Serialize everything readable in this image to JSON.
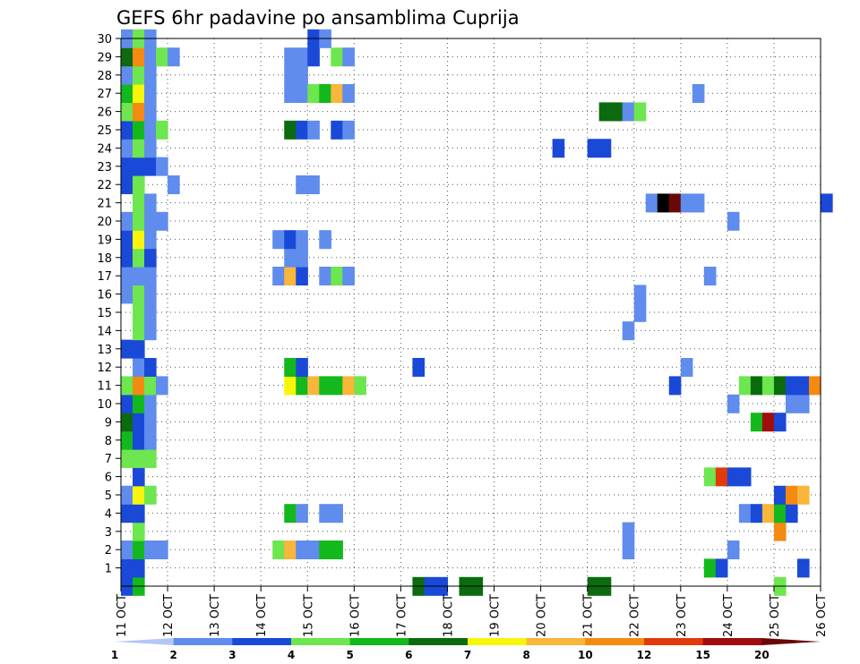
{
  "chart_data": {
    "type": "heatmap",
    "title": "GEFS 6hr padavine po ansamblima Cuprija",
    "xlabel": "",
    "ylabel": "",
    "x_tick_labels": [
      "11 OCT",
      "12 OCT",
      "13 OCT",
      "14 OCT",
      "15 OCT",
      "16 OCT",
      "17 OCT",
      "18 OCT",
      "19 OCT",
      "20 OCT",
      "21 OCT",
      "22 OCT",
      "23 OCT",
      "24 OCT",
      "25 OCT",
      "26 OCT"
    ],
    "y_tick_labels": [
      "1",
      "2",
      "3",
      "4",
      "5",
      "6",
      "7",
      "8",
      "9",
      "10",
      "11",
      "12",
      "13",
      "14",
      "15",
      "16",
      "17",
      "18",
      "19",
      "20",
      "21",
      "22",
      "23",
      "24",
      "25",
      "26",
      "27",
      "28",
      "29",
      "30"
    ],
    "y_range": [
      0,
      30
    ],
    "x_range_steps": [
      0,
      60
    ],
    "steps_per_day": 4,
    "grid": true,
    "colorbar": {
      "labels": [
        "1",
        "2",
        "3",
        "4",
        "5",
        "6",
        "7",
        "8",
        "10",
        "12",
        "15",
        "20"
      ],
      "colors": [
        "#b3c6f5",
        "#5f8ced",
        "#1a49d8",
        "#6de64f",
        "#12b81c",
        "#0b6b0e",
        "#f7f50a",
        "#f8b63a",
        "#f58a10",
        "#e23a0a",
        "#a10c0c",
        "#6a0808"
      ]
    },
    "cells": [
      [
        0,
        0,
        2
      ],
      [
        1,
        0,
        4
      ],
      [
        25,
        0,
        5
      ],
      [
        26,
        0,
        2
      ],
      [
        27,
        0,
        2
      ],
      [
        29,
        0,
        5
      ],
      [
        30,
        0,
        5
      ],
      [
        40,
        0,
        5
      ],
      [
        41,
        0,
        5
      ],
      [
        56,
        0,
        3
      ],
      [
        0,
        1,
        2
      ],
      [
        1,
        1,
        2
      ],
      [
        50,
        1,
        4
      ],
      [
        51,
        1,
        2
      ],
      [
        58,
        1,
        2
      ],
      [
        0,
        2,
        1
      ],
      [
        1,
        2,
        4
      ],
      [
        2,
        2,
        1
      ],
      [
        3,
        2,
        1
      ],
      [
        13,
        2,
        3
      ],
      [
        14,
        2,
        7
      ],
      [
        15,
        2,
        1
      ],
      [
        16,
        2,
        1
      ],
      [
        17,
        2,
        4
      ],
      [
        18,
        2,
        4
      ],
      [
        43,
        2,
        1
      ],
      [
        52,
        2,
        1
      ],
      [
        1,
        3,
        3
      ],
      [
        43,
        3,
        1
      ],
      [
        56,
        3,
        8
      ],
      [
        0,
        4,
        2
      ],
      [
        1,
        4,
        2
      ],
      [
        14,
        4,
        4
      ],
      [
        15,
        4,
        1
      ],
      [
        17,
        4,
        1
      ],
      [
        18,
        4,
        1
      ],
      [
        53,
        4,
        1
      ],
      [
        54,
        4,
        2
      ],
      [
        55,
        4,
        7
      ],
      [
        56,
        4,
        4
      ],
      [
        57,
        4,
        2
      ],
      [
        0,
        5,
        1
      ],
      [
        1,
        5,
        6
      ],
      [
        2,
        5,
        3
      ],
      [
        56,
        5,
        2
      ],
      [
        57,
        5,
        8
      ],
      [
        58,
        5,
        7
      ],
      [
        1,
        6,
        2
      ],
      [
        50,
        6,
        3
      ],
      [
        51,
        6,
        9
      ],
      [
        52,
        6,
        2
      ],
      [
        53,
        6,
        2
      ],
      [
        0,
        7,
        3
      ],
      [
        1,
        7,
        3
      ],
      [
        2,
        7,
        3
      ],
      [
        0,
        8,
        4
      ],
      [
        1,
        8,
        2
      ],
      [
        2,
        8,
        1
      ],
      [
        0,
        9,
        5
      ],
      [
        1,
        9,
        2
      ],
      [
        2,
        9,
        1
      ],
      [
        54,
        9,
        4
      ],
      [
        55,
        9,
        10
      ],
      [
        56,
        9,
        2
      ],
      [
        0,
        10,
        2
      ],
      [
        1,
        10,
        4
      ],
      [
        2,
        10,
        1
      ],
      [
        52,
        10,
        1
      ],
      [
        57,
        10,
        1
      ],
      [
        58,
        10,
        1
      ],
      [
        0,
        11,
        3
      ],
      [
        1,
        11,
        8
      ],
      [
        2,
        11,
        3
      ],
      [
        3,
        11,
        1
      ],
      [
        14,
        11,
        6
      ],
      [
        15,
        11,
        4
      ],
      [
        16,
        11,
        7
      ],
      [
        17,
        11,
        4
      ],
      [
        18,
        11,
        4
      ],
      [
        19,
        11,
        7
      ],
      [
        20,
        11,
        3
      ],
      [
        47,
        11,
        2
      ],
      [
        53,
        11,
        3
      ],
      [
        54,
        11,
        5
      ],
      [
        55,
        11,
        3
      ],
      [
        56,
        11,
        5
      ],
      [
        57,
        11,
        2
      ],
      [
        58,
        11,
        2
      ],
      [
        59,
        11,
        8
      ],
      [
        1,
        12,
        1
      ],
      [
        2,
        12,
        2
      ],
      [
        14,
        12,
        4
      ],
      [
        15,
        12,
        2
      ],
      [
        25,
        12,
        2
      ],
      [
        48,
        12,
        1
      ],
      [
        0,
        13,
        2
      ],
      [
        1,
        13,
        2
      ],
      [
        1,
        14,
        3
      ],
      [
        2,
        14,
        1
      ],
      [
        43,
        14,
        1
      ],
      [
        1,
        15,
        3
      ],
      [
        2,
        15,
        1
      ],
      [
        44,
        15,
        1
      ],
      [
        0,
        16,
        1
      ],
      [
        1,
        16,
        3
      ],
      [
        2,
        16,
        1
      ],
      [
        44,
        16,
        1
      ],
      [
        0,
        17,
        1
      ],
      [
        1,
        17,
        1
      ],
      [
        2,
        17,
        1
      ],
      [
        13,
        17,
        1
      ],
      [
        14,
        17,
        7
      ],
      [
        15,
        17,
        2
      ],
      [
        17,
        17,
        1
      ],
      [
        18,
        17,
        3
      ],
      [
        19,
        17,
        1
      ],
      [
        50,
        17,
        1
      ],
      [
        0,
        18,
        2
      ],
      [
        1,
        18,
        3
      ],
      [
        2,
        18,
        2
      ],
      [
        14,
        18,
        1
      ],
      [
        15,
        18,
        1
      ],
      [
        0,
        19,
        2
      ],
      [
        1,
        19,
        6
      ],
      [
        2,
        19,
        1
      ],
      [
        13,
        19,
        1
      ],
      [
        14,
        19,
        2
      ],
      [
        15,
        19,
        1
      ],
      [
        17,
        19,
        1
      ],
      [
        0,
        20,
        1
      ],
      [
        1,
        20,
        3
      ],
      [
        2,
        20,
        1
      ],
      [
        3,
        20,
        1
      ],
      [
        52,
        20,
        1
      ],
      [
        1,
        21,
        3
      ],
      [
        2,
        21,
        1
      ],
      [
        45,
        21,
        1
      ],
      [
        46,
        21,
        12
      ],
      [
        47,
        21,
        11
      ],
      [
        48,
        21,
        1
      ],
      [
        49,
        21,
        1
      ],
      [
        60,
        21,
        2
      ],
      [
        0,
        22,
        2
      ],
      [
        1,
        22,
        3
      ],
      [
        4,
        22,
        1
      ],
      [
        15,
        22,
        1
      ],
      [
        16,
        22,
        1
      ],
      [
        0,
        23,
        2
      ],
      [
        1,
        23,
        2
      ],
      [
        2,
        23,
        2
      ],
      [
        3,
        23,
        1
      ],
      [
        0,
        24,
        1
      ],
      [
        1,
        24,
        3
      ],
      [
        2,
        24,
        1
      ],
      [
        37,
        24,
        2
      ],
      [
        40,
        24,
        2
      ],
      [
        41,
        24,
        2
      ],
      [
        0,
        25,
        2
      ],
      [
        1,
        25,
        4
      ],
      [
        2,
        25,
        1
      ],
      [
        3,
        25,
        3
      ],
      [
        14,
        25,
        5
      ],
      [
        15,
        25,
        2
      ],
      [
        16,
        25,
        1
      ],
      [
        18,
        25,
        2
      ],
      [
        19,
        25,
        1
      ],
      [
        0,
        26,
        3
      ],
      [
        1,
        26,
        8
      ],
      [
        2,
        26,
        1
      ],
      [
        41,
        26,
        5
      ],
      [
        42,
        26,
        5
      ],
      [
        43,
        26,
        1
      ],
      [
        44,
        26,
        3
      ],
      [
        0,
        27,
        4
      ],
      [
        1,
        27,
        6
      ],
      [
        2,
        27,
        1
      ],
      [
        14,
        27,
        1
      ],
      [
        15,
        27,
        1
      ],
      [
        16,
        27,
        3
      ],
      [
        17,
        27,
        4
      ],
      [
        18,
        27,
        7
      ],
      [
        19,
        27,
        1
      ],
      [
        49,
        27,
        1
      ],
      [
        0,
        28,
        1
      ],
      [
        1,
        28,
        3
      ],
      [
        2,
        28,
        1
      ],
      [
        14,
        28,
        1
      ],
      [
        15,
        28,
        1
      ],
      [
        0,
        29,
        5
      ],
      [
        1,
        29,
        8
      ],
      [
        2,
        29,
        1
      ],
      [
        3,
        29,
        3
      ],
      [
        4,
        29,
        1
      ],
      [
        14,
        29,
        1
      ],
      [
        15,
        29,
        1
      ],
      [
        16,
        29,
        2
      ],
      [
        18,
        29,
        3
      ],
      [
        19,
        29,
        1
      ],
      [
        0,
        30,
        1
      ],
      [
        1,
        30,
        3
      ],
      [
        2,
        30,
        1
      ],
      [
        16,
        30,
        2
      ],
      [
        17,
        30,
        1
      ]
    ]
  }
}
